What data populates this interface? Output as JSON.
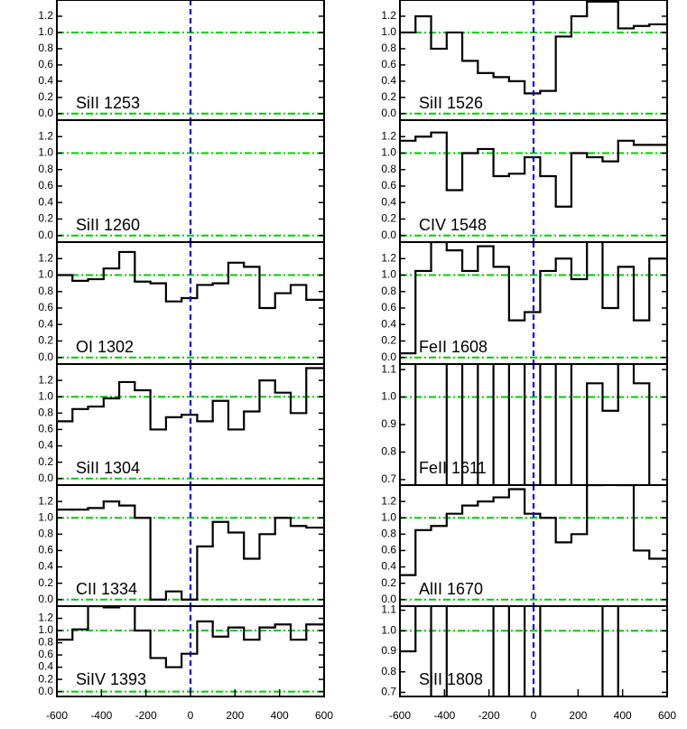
{
  "chart_data": [
    {
      "type": "line",
      "label": "SiII 1253",
      "x": [],
      "values": [],
      "xlim": [
        -600,
        600
      ],
      "ylim": [
        -0.08,
        1.4
      ],
      "yticks": [
        {
          "value": 0,
          "label": "0.0"
        },
        0.2,
        0.4,
        0.6,
        0.8,
        {
          "value": 1,
          "label": "1.0"
        },
        1.2
      ],
      "hlines": [
        0,
        1
      ],
      "vline": 0,
      "color": "#000000",
      "ref_color": "#00cc00",
      "vline_color": "#0000ee"
    },
    {
      "type": "line",
      "label": "SiII 1260",
      "x": [],
      "values": [],
      "xlim": [
        -600,
        600
      ],
      "ylim": [
        -0.08,
        1.4
      ],
      "yticks": [
        {
          "value": 0,
          "label": "0.0"
        },
        0.2,
        0.4,
        0.6,
        0.8,
        {
          "value": 1,
          "label": "1.0"
        },
        1.2
      ],
      "hlines": [
        0,
        1
      ],
      "vline": 0,
      "color": "#000000",
      "ref_color": "#00cc00",
      "vline_color": "#0000ee"
    },
    {
      "type": "line",
      "label": "OI 1302",
      "x": [
        -600,
        -530,
        -460,
        -390,
        -320,
        -250,
        -180,
        -110,
        -40,
        30,
        100,
        170,
        240,
        310,
        380,
        450,
        520
      ],
      "values": [
        1.0,
        0.93,
        0.95,
        1.08,
        1.28,
        0.92,
        0.9,
        0.68,
        0.72,
        0.88,
        0.9,
        1.15,
        1.1,
        0.6,
        0.78,
        0.88,
        0.7
      ],
      "xlim": [
        -600,
        600
      ],
      "ylim": [
        -0.08,
        1.4
      ],
      "yticks": [
        {
          "value": 0,
          "label": "0.0"
        },
        0.2,
        0.4,
        0.6,
        0.8,
        {
          "value": 1,
          "label": "1.0"
        },
        1.2
      ],
      "hlines": [
        0,
        1
      ],
      "vline": 0,
      "color": "#000000",
      "ref_color": "#00cc00",
      "vline_color": "#0000ee"
    },
    {
      "type": "line",
      "label": "SiII 1304",
      "x": [
        -600,
        -530,
        -460,
        -390,
        -320,
        -250,
        -180,
        -110,
        -40,
        30,
        100,
        170,
        240,
        310,
        380,
        450,
        520
      ],
      "values": [
        0.7,
        0.85,
        0.88,
        0.98,
        1.18,
        1.08,
        0.6,
        0.75,
        0.78,
        0.7,
        0.95,
        0.6,
        0.82,
        1.2,
        1.05,
        0.8,
        1.35
      ],
      "xlim": [
        -600,
        600
      ],
      "ylim": [
        -0.08,
        1.4
      ],
      "yticks": [
        {
          "value": 0,
          "label": "0.0"
        },
        0.2,
        0.4,
        0.6,
        0.8,
        {
          "value": 1,
          "label": "1.0"
        },
        1.2
      ],
      "hlines": [
        0,
        1
      ],
      "vline": 0,
      "color": "#000000",
      "ref_color": "#00cc00",
      "vline_color": "#0000ee"
    },
    {
      "type": "line",
      "label": "CII 1334",
      "x": [
        -600,
        -530,
        -460,
        -390,
        -320,
        -250,
        -180,
        -110,
        -40,
        30,
        100,
        170,
        240,
        310,
        380,
        450,
        520
      ],
      "values": [
        1.1,
        1.1,
        1.12,
        1.2,
        1.15,
        1.0,
        0.0,
        0.1,
        0.0,
        0.65,
        0.95,
        0.82,
        0.5,
        0.8,
        1.0,
        0.9,
        0.88
      ],
      "xlim": [
        -600,
        600
      ],
      "ylim": [
        -0.08,
        1.4
      ],
      "yticks": [
        {
          "value": 0,
          "label": "0.0"
        },
        0.2,
        0.4,
        0.6,
        0.8,
        {
          "value": 1,
          "label": "1.0"
        },
        1.2
      ],
      "hlines": [
        0,
        1
      ],
      "vline": 0,
      "color": "#000000",
      "ref_color": "#00cc00",
      "vline_color": "#0000ee"
    },
    {
      "type": "line",
      "label": "SiIV 1393",
      "x": [
        -600,
        -530,
        -460,
        -390,
        -320,
        -250,
        -180,
        -110,
        -40,
        30,
        100,
        170,
        240,
        310,
        380,
        450,
        520
      ],
      "values": [
        0.85,
        1.02,
        1.4,
        1.38,
        1.45,
        1.0,
        0.55,
        0.4,
        0.62,
        1.15,
        0.9,
        1.05,
        0.85,
        1.05,
        1.1,
        0.85,
        1.1
      ],
      "xlim": [
        -600,
        600
      ],
      "ylim": [
        -0.08,
        1.4
      ],
      "yticks": [
        {
          "value": 0,
          "label": "0.0"
        },
        0.2,
        0.4,
        0.6,
        0.8,
        {
          "value": 1,
          "label": "1.0"
        },
        1.2
      ],
      "xticks": [
        -600,
        -400,
        -200,
        0,
        200,
        400,
        600
      ],
      "hlines": [
        0,
        1
      ],
      "vline": 0,
      "color": "#000000",
      "ref_color": "#00cc00",
      "vline_color": "#0000ee"
    },
    {
      "type": "line",
      "label": "SiII 1526",
      "x": [
        -600,
        -530,
        -460,
        -390,
        -320,
        -250,
        -180,
        -110,
        -40,
        30,
        100,
        170,
        240,
        310,
        380,
        450,
        520
      ],
      "values": [
        1.0,
        1.2,
        0.8,
        1.0,
        0.65,
        0.5,
        0.45,
        0.4,
        0.25,
        0.28,
        0.95,
        1.2,
        1.38,
        1.38,
        1.05,
        1.08,
        1.1
      ],
      "xlim": [
        -600,
        600
      ],
      "ylim": [
        -0.08,
        1.4
      ],
      "yticks": [
        {
          "value": 0,
          "label": "0.0"
        },
        0.2,
        0.4,
        0.6,
        0.8,
        {
          "value": 1,
          "label": "1.0"
        },
        1.2
      ],
      "hlines": [
        0,
        1
      ],
      "vline": 0,
      "color": "#000000",
      "ref_color": "#00cc00",
      "vline_color": "#0000ee"
    },
    {
      "type": "line",
      "label": "CIV 1548",
      "x": [
        -600,
        -530,
        -460,
        -390,
        -320,
        -250,
        -180,
        -110,
        -40,
        30,
        100,
        170,
        240,
        310,
        380,
        450,
        520
      ],
      "values": [
        1.15,
        1.2,
        1.25,
        0.55,
        1.0,
        1.05,
        0.72,
        0.75,
        0.95,
        0.72,
        0.35,
        1.0,
        0.95,
        0.9,
        1.15,
        1.1,
        1.1
      ],
      "xlim": [
        -600,
        600
      ],
      "ylim": [
        -0.08,
        1.4
      ],
      "yticks": [
        {
          "value": 0,
          "label": "0.0"
        },
        0.2,
        0.4,
        0.6,
        0.8,
        {
          "value": 1,
          "label": "1.0"
        },
        1.2
      ],
      "hlines": [
        0,
        1
      ],
      "vline": 0,
      "color": "#000000",
      "ref_color": "#00cc00",
      "vline_color": "#0000ee"
    },
    {
      "type": "line",
      "label": "FeII 1608",
      "x": [
        -600,
        -530,
        -460,
        -390,
        -320,
        -250,
        -180,
        -110,
        -40,
        30,
        100,
        170,
        240,
        310,
        380,
        450,
        520
      ],
      "values": [
        0.05,
        1.05,
        1.4,
        1.3,
        1.05,
        1.35,
        1.1,
        0.45,
        0.55,
        1.05,
        1.2,
        0.95,
        1.45,
        0.6,
        1.1,
        0.45,
        1.2
      ],
      "xlim": [
        -600,
        600
      ],
      "ylim": [
        -0.08,
        1.4
      ],
      "yticks": [
        {
          "value": 0,
          "label": "0.0"
        },
        0.2,
        0.4,
        0.6,
        0.8,
        {
          "value": 1,
          "label": "1.0"
        },
        1.2
      ],
      "hlines": [
        0,
        1
      ],
      "vline": 0,
      "color": "#000000",
      "ref_color": "#00cc00",
      "vline_color": "#0000ee"
    },
    {
      "type": "line",
      "label": "FeII 1611",
      "x": [
        -600,
        -530,
        -460,
        -390,
        -320,
        -250,
        -180,
        -110,
        -40,
        30,
        100,
        170,
        240,
        310,
        380,
        450,
        520
      ],
      "values": [
        0.6,
        1.2,
        1.2,
        0.6,
        1.2,
        0.6,
        1.2,
        0.6,
        1.2,
        0.6,
        1.2,
        0.6,
        1.05,
        0.95,
        1.2,
        1.05,
        0.6
      ],
      "xlim": [
        -600,
        600
      ],
      "ylim": [
        0.68,
        1.12
      ],
      "yticks": [
        0.7,
        0.8,
        0.9,
        {
          "value": 1,
          "label": "1.0"
        },
        1.1
      ],
      "hlines": [
        1
      ],
      "vline": 0,
      "color": "#000000",
      "ref_color": "#00cc00",
      "vline_color": "#0000ee"
    },
    {
      "type": "line",
      "label": "AlII 1670",
      "x": [
        -600,
        -530,
        -460,
        -390,
        -320,
        -250,
        -180,
        -110,
        -40,
        30,
        100,
        170,
        240,
        310,
        380,
        450,
        520
      ],
      "values": [
        0.3,
        0.85,
        0.9,
        1.05,
        1.15,
        1.2,
        1.25,
        1.35,
        1.05,
        1.0,
        0.7,
        0.8,
        1.4,
        1.45,
        1.4,
        0.6,
        0.5
      ],
      "xlim": [
        -600,
        600
      ],
      "ylim": [
        -0.08,
        1.4
      ],
      "yticks": [
        {
          "value": 0,
          "label": "0.0"
        },
        0.2,
        0.4,
        0.6,
        0.8,
        {
          "value": 1,
          "label": "1.0"
        },
        1.2
      ],
      "hlines": [
        0,
        1
      ],
      "vline": 0,
      "color": "#000000",
      "ref_color": "#00cc00",
      "vline_color": "#0000ee"
    },
    {
      "type": "line",
      "label": "SiII 1808",
      "x": [
        -600,
        -530,
        -460,
        -390,
        -320,
        -250,
        -180,
        -110,
        -40,
        30,
        100,
        170,
        240,
        310,
        380,
        450,
        520
      ],
      "values": [
        0.9,
        1.2,
        0.6,
        1.2,
        1.2,
        1.2,
        0.6,
        1.2,
        0.6,
        1.2,
        1.2,
        1.2,
        1.2,
        0.6,
        1.2,
        1.2,
        1.2
      ],
      "xlim": [
        -600,
        600
      ],
      "ylim": [
        0.68,
        1.12
      ],
      "yticks": [
        0.7,
        0.8,
        0.9,
        {
          "value": 1,
          "label": "1.0"
        },
        1.1
      ],
      "xticks": [
        -600,
        -400,
        -200,
        0,
        200,
        400,
        600
      ],
      "hlines": [
        1
      ],
      "vline": 0,
      "color": "#000000",
      "ref_color": "#00cc00",
      "vline_color": "#0000ee"
    }
  ]
}
